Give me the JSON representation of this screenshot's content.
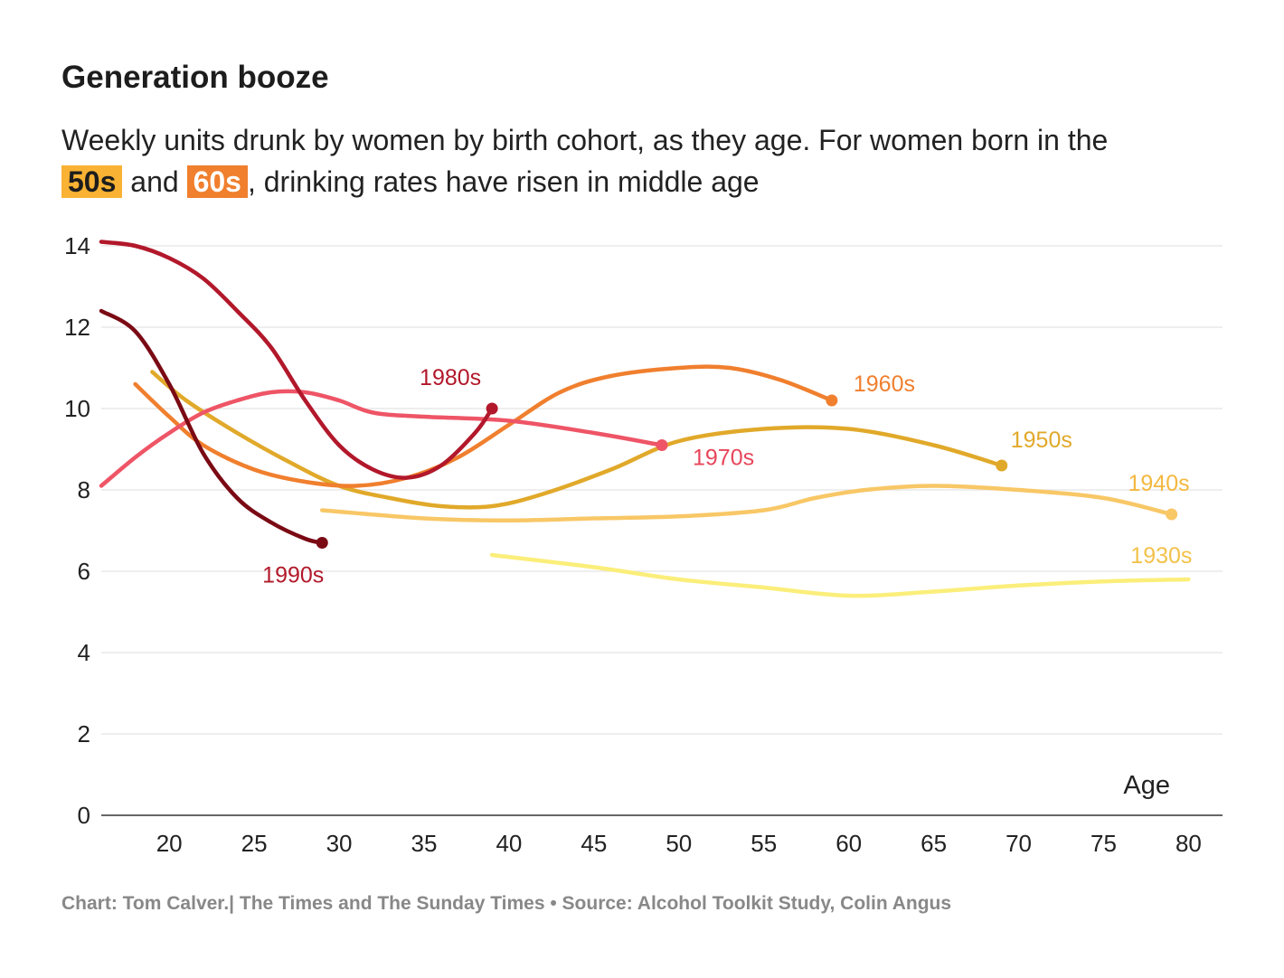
{
  "title": "Generation booze",
  "subtitle": {
    "line1": "Weekly units drunk by women by birth cohort, as they age. For women born in the",
    "hl_50s": "50s",
    "and": " and ",
    "hl_60s": "60s",
    "rest": ", drinking rates have risen in middle age",
    "hl_50s_color": "#f9b233",
    "hl_60s_color": "#f07f2e"
  },
  "footer": "Chart: Tom Calver.| The Times and The Sunday Times • Source: Alcohol Toolkit Study, Colin Angus",
  "chart_data": {
    "type": "line",
    "title": "Generation booze",
    "xlabel": "Age",
    "ylabel": "",
    "xlim": [
      16,
      82
    ],
    "ylim": [
      0,
      14
    ],
    "x_ticks": [
      20,
      25,
      30,
      35,
      40,
      45,
      50,
      55,
      60,
      65,
      70,
      75,
      80
    ],
    "y_ticks": [
      0,
      2,
      4,
      6,
      8,
      10,
      12,
      14
    ],
    "grid": true,
    "series": [
      {
        "name": "1990s",
        "color": "#7a0a14",
        "label": "1990s",
        "label_color": "#b2182b",
        "end_marker": true,
        "x": [
          16,
          18,
          20,
          22,
          24,
          26,
          28,
          29
        ],
        "y": [
          12.4,
          11.9,
          10.6,
          8.9,
          7.8,
          7.2,
          6.8,
          6.7
        ]
      },
      {
        "name": "1980s",
        "color": "#b2182b",
        "label": "1980s",
        "label_color": "#b2182b",
        "end_marker": true,
        "x": [
          16,
          18,
          20,
          22,
          24,
          26,
          28,
          30,
          32,
          34,
          36,
          38,
          39
        ],
        "y": [
          14.1,
          14.0,
          13.7,
          13.2,
          12.4,
          11.5,
          10.2,
          9.1,
          8.5,
          8.3,
          8.6,
          9.4,
          10.0
        ]
      },
      {
        "name": "1970s",
        "color": "#ee5566",
        "label": "1970s",
        "label_color": "#e8455a",
        "end_marker": true,
        "x": [
          16,
          18,
          20,
          22,
          24,
          26,
          28,
          30,
          32,
          35,
          40,
          45,
          49
        ],
        "y": [
          8.1,
          8.8,
          9.4,
          9.9,
          10.2,
          10.4,
          10.4,
          10.2,
          9.9,
          9.8,
          9.7,
          9.4,
          9.1
        ]
      },
      {
        "name": "1960s",
        "color": "#f07f2e",
        "label": "1960s",
        "label_color": "#f07f2e",
        "end_marker": true,
        "x": [
          18,
          20,
          22,
          25,
          28,
          31,
          34,
          37,
          40,
          43,
          46,
          50,
          53,
          56,
          59
        ],
        "y": [
          10.6,
          9.8,
          9.1,
          8.5,
          8.2,
          8.1,
          8.3,
          8.8,
          9.6,
          10.4,
          10.8,
          11.0,
          11.0,
          10.7,
          10.2
        ]
      },
      {
        "name": "1950s",
        "color": "#e1a92a",
        "label": "1950s",
        "label_color": "#e1a92a",
        "end_marker": true,
        "x": [
          19,
          21,
          24,
          27,
          30,
          33,
          36,
          39,
          42,
          46,
          50,
          55,
          60,
          65,
          69
        ],
        "y": [
          10.9,
          10.2,
          9.4,
          8.7,
          8.1,
          7.8,
          7.6,
          7.6,
          7.9,
          8.5,
          9.2,
          9.5,
          9.5,
          9.1,
          8.6
        ]
      },
      {
        "name": "1940s",
        "color": "#f8c766",
        "label": "1940s",
        "label_color": "#f3b840",
        "end_marker": true,
        "x": [
          29,
          35,
          40,
          45,
          50,
          55,
          58,
          61,
          65,
          70,
          75,
          79
        ],
        "y": [
          7.5,
          7.3,
          7.25,
          7.3,
          7.35,
          7.5,
          7.8,
          8.0,
          8.1,
          8.0,
          7.8,
          7.4
        ]
      },
      {
        "name": "1930s",
        "color": "#fbee7a",
        "label": "1930s",
        "label_color": "#f3c24a",
        "end_marker": false,
        "x": [
          39,
          45,
          50,
          55,
          60,
          65,
          70,
          75,
          80
        ],
        "y": [
          6.4,
          6.1,
          5.8,
          5.6,
          5.4,
          5.5,
          5.65,
          5.75,
          5.8
        ]
      }
    ]
  }
}
